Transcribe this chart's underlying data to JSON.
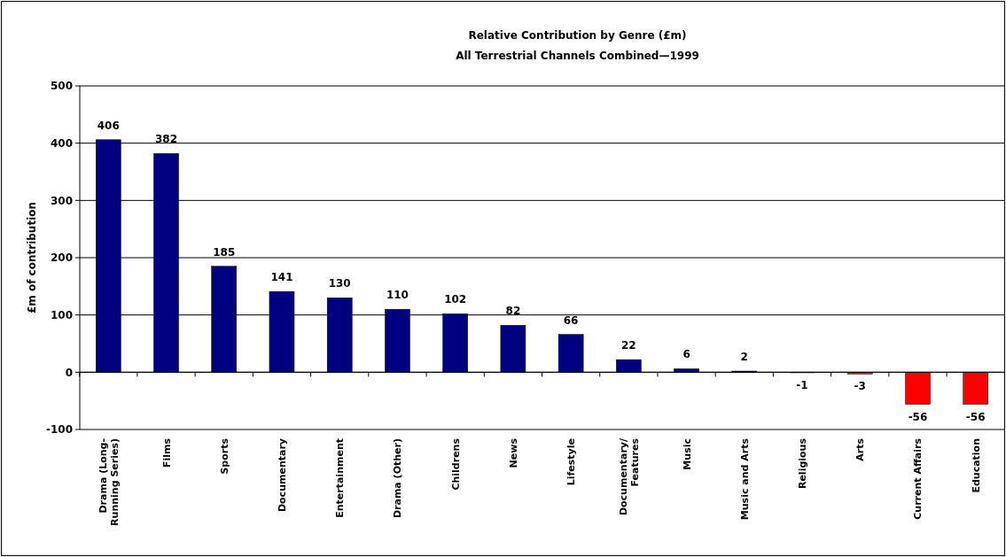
{
  "chart_data": {
    "type": "bar",
    "title": "Relative Contribution by Genre (£m)",
    "subtitle": "All Terrestrial Channels Combined—1999",
    "ylabel": "£m of contribution",
    "categories": [
      "Drama (Long-Running Series)",
      "Films",
      "Sports",
      "Documentary",
      "Entertainment",
      "Drama (Other)",
      "Childrens",
      "News",
      "Lifestyle",
      "Documentary/ Features",
      "Music",
      "Music and Arts",
      "Religious",
      "Arts",
      "Current Affairs",
      "Education"
    ],
    "values": [
      406,
      382,
      185,
      141,
      130,
      110,
      102,
      82,
      66,
      22,
      6,
      2,
      -1,
      -3,
      -56,
      -56
    ],
    "colors": [
      "#000080",
      "#000080",
      "#000080",
      "#000080",
      "#000080",
      "#000080",
      "#000080",
      "#000080",
      "#000080",
      "#000080",
      "#000080",
      "#000080",
      "#000080",
      "#ff0000",
      "#ff0000",
      "#ff0000"
    ],
    "ylim": [
      -100,
      500
    ],
    "yticks": [
      -100,
      0,
      100,
      200,
      300,
      400,
      500
    ],
    "grid": "y",
    "data_labels": true
  }
}
